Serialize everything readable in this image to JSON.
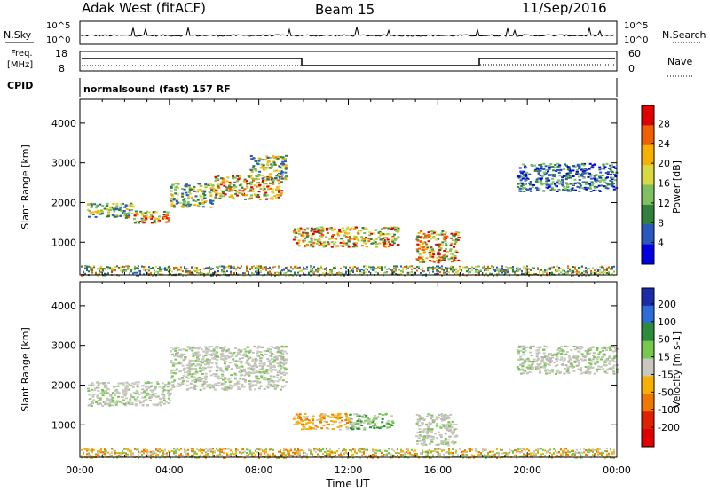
{
  "header": {
    "site": "Adak West (fitACF)",
    "beam": "Beam 15",
    "date": "11/Sep/2016"
  },
  "top_panels": {
    "nsky_label": "N.Sky",
    "nsky_ticks": [
      "10^5",
      "10^0"
    ],
    "nsearch_label": "N.Search",
    "nsearch_ticks": [
      "10^5",
      "10^0"
    ],
    "freq_label": "Freq.",
    "freq_unit": "[MHz]",
    "freq_ticks": [
      "18",
      "8"
    ],
    "nave_label": "Nave",
    "nave_ticks": [
      "60",
      "0"
    ],
    "cpid_label": "CPID",
    "cpid_text": "normalsound (fast) 157 RF"
  },
  "chart_data": [
    {
      "type": "heatmap",
      "name": "power-panel",
      "ylabel": "Slant Range [km]",
      "yticks": [
        "4000",
        "3000",
        "2000",
        "1000"
      ],
      "ylim": [
        180,
        4600
      ],
      "xlim_hours": [
        0,
        24
      ],
      "colorbar_label": "Power [dB]",
      "colorbar_ticks": [
        "28",
        "24",
        "20",
        "16",
        "12",
        "8",
        "4"
      ],
      "colorbar_colors": [
        "#e00000",
        "#f06000",
        "#f8b000",
        "#d8d840",
        "#80c060",
        "#308040",
        "#2858c0",
        "#0000e0"
      ],
      "scatter_regions": [
        {
          "start_hour": 0.3,
          "end_hour": 2.5,
          "range_km": [
            1650,
            2000
          ],
          "level": "mid"
        },
        {
          "start_hour": 2.0,
          "end_hour": 4.0,
          "range_km": [
            1500,
            1800
          ],
          "level": "high"
        },
        {
          "start_hour": 4.0,
          "end_hour": 6.0,
          "range_km": [
            1900,
            2500
          ],
          "level": "mid"
        },
        {
          "start_hour": 6.0,
          "end_hour": 9.0,
          "range_km": [
            2100,
            2700
          ],
          "level": "high"
        },
        {
          "start_hour": 7.5,
          "end_hour": 9.2,
          "range_km": [
            2600,
            3200
          ],
          "level": "mid"
        },
        {
          "start_hour": 9.5,
          "end_hour": 14.2,
          "range_km": [
            900,
            1400
          ],
          "level": "high"
        },
        {
          "start_hour": 15.0,
          "end_hour": 16.9,
          "range_km": [
            500,
            1300
          ],
          "level": "high"
        },
        {
          "start_hour": 19.5,
          "end_hour": 24.0,
          "range_km": [
            2300,
            3000
          ],
          "level": "low"
        }
      ],
      "ground_band": {
        "range_km": [
          180,
          420
        ],
        "start_hour": 0,
        "end_hour": 24
      }
    },
    {
      "type": "heatmap",
      "name": "velocity-panel",
      "ylabel": "Slant Range [km]",
      "yticks": [
        "4000",
        "3000",
        "2000",
        "1000"
      ],
      "ylim": [
        180,
        4600
      ],
      "xlim_hours": [
        0,
        24
      ],
      "xticks": [
        "00:00",
        "04:00",
        "08:00",
        "12:00",
        "16:00",
        "20:00",
        "00:00"
      ],
      "xlabel": "Time UT",
      "colorbar_label": "Velocity [m s-1]",
      "colorbar_ticks": [
        "200",
        "100",
        "50",
        "15",
        "-15",
        "-50",
        "-100",
        "-200"
      ],
      "colorbar_colors": [
        "#1c2ca8",
        "#2c6cd8",
        "#2c8c3c",
        "#78c850",
        "#c8c8c0",
        "#f8b000",
        "#f07800",
        "#e02000",
        "#e00000"
      ],
      "scatter_regions": [
        {
          "start_hour": 0.3,
          "end_hour": 4.0,
          "range_km": [
            1500,
            2100
          ],
          "color": "gray"
        },
        {
          "start_hour": 4.0,
          "end_hour": 9.2,
          "range_km": [
            1900,
            3000
          ],
          "color": "gray"
        },
        {
          "start_hour": 9.5,
          "end_hour": 12.0,
          "range_km": [
            900,
            1300
          ],
          "color": "orange"
        },
        {
          "start_hour": 12.0,
          "end_hour": 14.0,
          "range_km": [
            900,
            1300
          ],
          "color": "green"
        },
        {
          "start_hour": 15.0,
          "end_hour": 16.8,
          "range_km": [
            500,
            1300
          ],
          "color": "gray"
        },
        {
          "start_hour": 19.5,
          "end_hour": 24.0,
          "range_km": [
            2300,
            3000
          ],
          "color": "gray"
        }
      ],
      "ground_band": {
        "range_km": [
          180,
          420
        ],
        "start_hour": 0,
        "end_hour": 24
      }
    }
  ]
}
